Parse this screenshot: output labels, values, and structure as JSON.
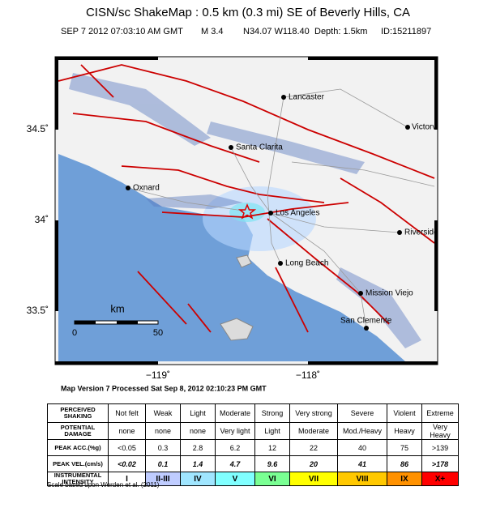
{
  "header": {
    "title": "CISN/sc ShakeMap : 0.5 km (0.3 mi) SE of Beverly Hills, CA",
    "subtitle": [
      "SEP 7 2012 07:03:10 AM GMT",
      "M 3.4",
      "N34.07 W118.40",
      "Depth: 1.5km",
      "ID:15211897"
    ]
  },
  "map": {
    "cities": [
      "Lancaster",
      "Victorvi",
      "Santa Clarita",
      "Oxnard",
      "Los Angeles",
      "Riverside",
      "Long Beach",
      "Mission Viejo",
      "San Clemente"
    ],
    "lat_labels": [
      "34.5˚",
      "34˚",
      "33.5˚"
    ],
    "lon_labels": [
      "−119˚",
      "−118˚"
    ],
    "scale": {
      "unit": "km",
      "labels": [
        "0",
        "50"
      ]
    }
  },
  "version": "Map Version 7 Processed Sat Sep  8, 2012 02:10:23 PM GMT",
  "legend": {
    "rows": [
      [
        "PERCEIVED SHAKING",
        "Not felt",
        "Weak",
        "Light",
        "Moderate",
        "Strong",
        "Very strong",
        "Severe",
        "Violent",
        "Extreme"
      ],
      [
        "POTENTIAL DAMAGE",
        "none",
        "none",
        "none",
        "Very light",
        "Light",
        "Moderate",
        "Mod./Heavy",
        "Heavy",
        "Very Heavy"
      ],
      [
        "PEAK ACC.(%g)",
        "<0.05",
        "0.3",
        "2.8",
        "6.2",
        "12",
        "22",
        "40",
        "75",
        ">139"
      ],
      [
        "PEAK VEL.(cm/s)",
        "<0.02",
        "0.1",
        "1.4",
        "4.7",
        "9.6",
        "20",
        "41",
        "86",
        ">178"
      ],
      [
        "INSTRUMENTAL INTENSITY",
        "I",
        "II-III",
        "IV",
        "V",
        "VI",
        "VII",
        "VIII",
        "IX",
        "X+"
      ]
    ]
  },
  "footnote": "Scale based upon Worden et al. (2011)"
}
